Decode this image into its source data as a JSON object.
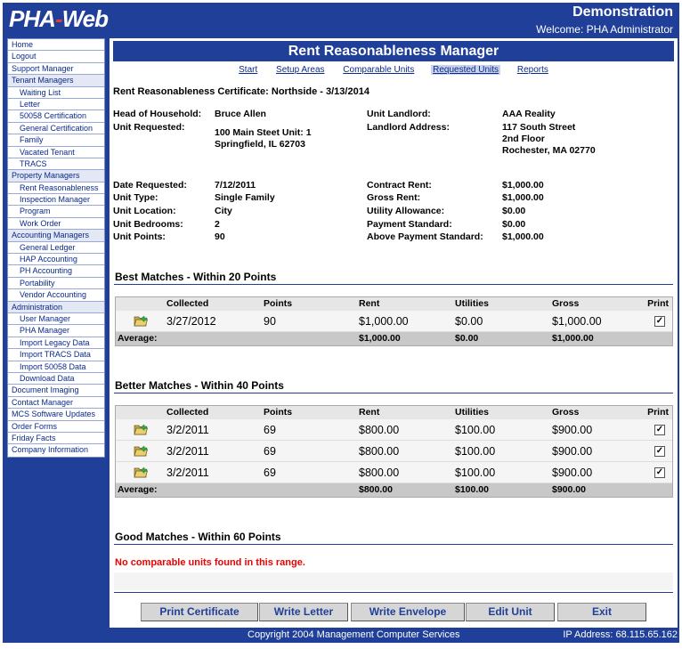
{
  "header": {
    "logo_left": "PHA",
    "logo_dash": "-",
    "logo_right": "Web",
    "title": "Demonstration",
    "welcome": "Welcome: PHA Administrator"
  },
  "sidebar": {
    "items": [
      {
        "label": "Home",
        "type": "top"
      },
      {
        "label": "Logout",
        "type": "top"
      },
      {
        "label": "Support Manager",
        "type": "top"
      },
      {
        "label": "Tenant Managers",
        "type": "section"
      },
      {
        "label": "Waiting List",
        "type": "sub"
      },
      {
        "label": "Letter",
        "type": "sub"
      },
      {
        "label": "50058 Certification",
        "type": "sub"
      },
      {
        "label": "General Certification",
        "type": "sub"
      },
      {
        "label": "Family",
        "type": "sub"
      },
      {
        "label": "Vacated Tenant",
        "type": "sub"
      },
      {
        "label": "TRACS",
        "type": "sub"
      },
      {
        "label": "Property Managers",
        "type": "section"
      },
      {
        "label": "Rent Reasonableness",
        "type": "sub"
      },
      {
        "label": "Inspection Manager",
        "type": "sub"
      },
      {
        "label": "Program",
        "type": "sub"
      },
      {
        "label": "Work Order",
        "type": "sub"
      },
      {
        "label": "Accounting Managers",
        "type": "section"
      },
      {
        "label": "General Ledger",
        "type": "sub"
      },
      {
        "label": "HAP Accounting",
        "type": "sub"
      },
      {
        "label": "PH Accounting",
        "type": "sub"
      },
      {
        "label": "Portability",
        "type": "sub"
      },
      {
        "label": "Vendor Accounting",
        "type": "sub"
      },
      {
        "label": "Administration",
        "type": "section"
      },
      {
        "label": "User Manager",
        "type": "sub"
      },
      {
        "label": "PHA Manager",
        "type": "sub"
      },
      {
        "label": "Import Legacy Data",
        "type": "sub"
      },
      {
        "label": "Import TRACS Data",
        "type": "sub"
      },
      {
        "label": "Import 50058 Data",
        "type": "sub"
      },
      {
        "label": "Download Data",
        "type": "sub"
      },
      {
        "label": "Document Imaging",
        "type": "top"
      },
      {
        "label": "Contact Manager",
        "type": "top"
      },
      {
        "label": "MCS Software Updates",
        "type": "top"
      },
      {
        "label": "Order Forms",
        "type": "top"
      },
      {
        "label": "Friday Facts",
        "type": "top"
      },
      {
        "label": "Company Information",
        "type": "top"
      }
    ]
  },
  "main": {
    "title": "Rent Reasonableness Manager",
    "tabs": [
      "Start",
      "Setup Areas",
      "Comparable Units",
      "Requested Units",
      "Reports"
    ],
    "active_tab": "Requested Units",
    "cert_title": "Rent Reasonableness Certificate: Northside -  3/13/2014",
    "details": {
      "head_label": "Head of Household:",
      "head_value": "Bruce Allen",
      "unit_req_label": "Unit Requested:",
      "unit_req_line1": "100 Main Steet Unit: 1",
      "unit_req_line2": "Springfield, IL 62703",
      "landlord_label": "Unit Landlord:",
      "landlord_value": "AAA Reality",
      "landlord_addr_label": "Landlord Address:",
      "landlord_addr_line1": "117 South Street",
      "landlord_addr_line2": "2nd Floor",
      "landlord_addr_line3": "Rochester, MA 02770",
      "date_req_label": "Date Requested:",
      "date_req_value": "7/12/2011",
      "unit_type_label": "Unit Type:",
      "unit_type_value": "Single Family",
      "unit_loc_label": "Unit Location:",
      "unit_loc_value": "City",
      "unit_bed_label": "Unit Bedrooms:",
      "unit_bed_value": "2",
      "unit_pts_label": "Unit Points:",
      "unit_pts_value": "90",
      "contract_label": "Contract Rent:",
      "contract_value": "$1,000.00",
      "gross_label": "Gross Rent:",
      "gross_value": "$1,000.00",
      "utility_label": "Utility Allowance:",
      "utility_value": "$0.00",
      "pay_std_label": "Payment Standard:",
      "pay_std_value": "$0.00",
      "above_label": "Above Payment Standard:",
      "above_value": "$1,000.00"
    },
    "columns": {
      "collected": "Collected",
      "points": "Points",
      "rent": "Rent",
      "utilities": "Utilities",
      "gross": "Gross",
      "print": "Print"
    },
    "best": {
      "title": "Best Matches - Within 20 Points",
      "rows": [
        {
          "collected": "3/27/2012",
          "points": "90",
          "rent": "$1,000.00",
          "utilities": "$0.00",
          "gross": "$1,000.00",
          "checked": "✓"
        }
      ],
      "avg_label": "Average:",
      "avg_rent": "$1,000.00",
      "avg_util": "$0.00",
      "avg_gross": "$1,000.00"
    },
    "better": {
      "title": "Better Matches - Within 40 Points",
      "rows": [
        {
          "collected": "3/2/2011",
          "points": "69",
          "rent": "$800.00",
          "utilities": "$100.00",
          "gross": "$900.00",
          "checked": "✓"
        },
        {
          "collected": "3/2/2011",
          "points": "69",
          "rent": "$800.00",
          "utilities": "$100.00",
          "gross": "$900.00",
          "checked": "✓"
        },
        {
          "collected": "3/2/2011",
          "points": "69",
          "rent": "$800.00",
          "utilities": "$100.00",
          "gross": "$900.00",
          "checked": "✓"
        }
      ],
      "avg_label": "Average:",
      "avg_rent": "$800.00",
      "avg_util": "$100.00",
      "avg_gross": "$900.00"
    },
    "good": {
      "title": "Good Matches - Within 60 Points",
      "empty_message": "No comparable units found in this range."
    },
    "buttons": {
      "print_cert": "Print Certificate",
      "write_letter": "Write Letter",
      "write_envelope": "Write Envelope",
      "edit_unit": "Edit Unit",
      "exit": "Exit"
    }
  },
  "footer": {
    "copyright": "Copyright 2004 Management Computer Services",
    "ip": "IP Address: 68.115.65.162"
  },
  "colors": {
    "brand_blue": "#1f3f99",
    "error_red": "#ee0000"
  }
}
